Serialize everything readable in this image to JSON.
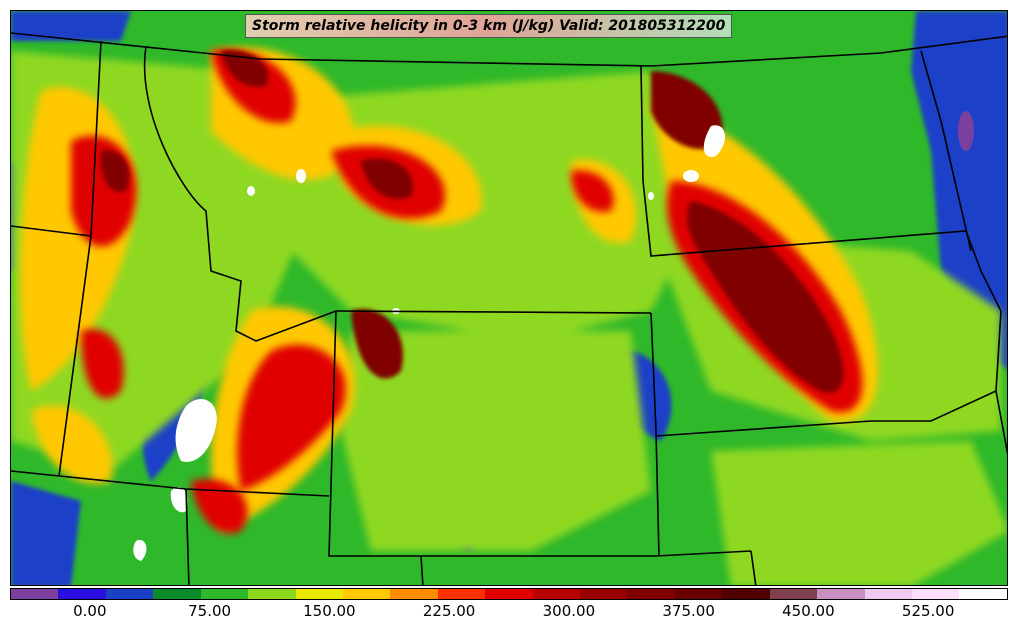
{
  "title": "Storm relative helicity in 0-3 km (J/kg) Valid: 201805312200",
  "colorbar": {
    "colors": [
      "#7b3f9e",
      "#2a10e0",
      "#1a40c8",
      "#0a8a2a",
      "#2fb82a",
      "#8fd820",
      "#e8e800",
      "#ffc800",
      "#ff8c00",
      "#ff3000",
      "#e00000",
      "#b80000",
      "#980000",
      "#800000",
      "#680000",
      "#500000",
      "#804050",
      "#c890c0",
      "#f0c8f0",
      "#ffe0ff",
      "#ffffff"
    ],
    "ticks": [
      {
        "label": "0.00",
        "value": 0
      },
      {
        "label": "75.00",
        "value": 75
      },
      {
        "label": "150.00",
        "value": 150
      },
      {
        "label": "225.00",
        "value": 225
      },
      {
        "label": "300.00",
        "value": 300
      },
      {
        "label": "375.00",
        "value": 375
      },
      {
        "label": "450.00",
        "value": 450
      },
      {
        "label": "525.00",
        "value": 525
      }
    ],
    "min": -50,
    "max": 575
  },
  "map": {
    "fields": [
      {
        "name": "background",
        "color": "#2fb82a"
      },
      {
        "name": "low-helicity",
        "color": "#1a40c8"
      },
      {
        "name": "moderate-helicity",
        "color": "#8fd820"
      },
      {
        "name": "elevated-helicity",
        "color": "#ffc800"
      },
      {
        "name": "high-helicity",
        "color": "#e00000"
      },
      {
        "name": "very-high-helicity",
        "color": "#800000"
      },
      {
        "name": "extreme-helicity",
        "color": "#ffffff"
      }
    ],
    "border_color": "#000000"
  }
}
